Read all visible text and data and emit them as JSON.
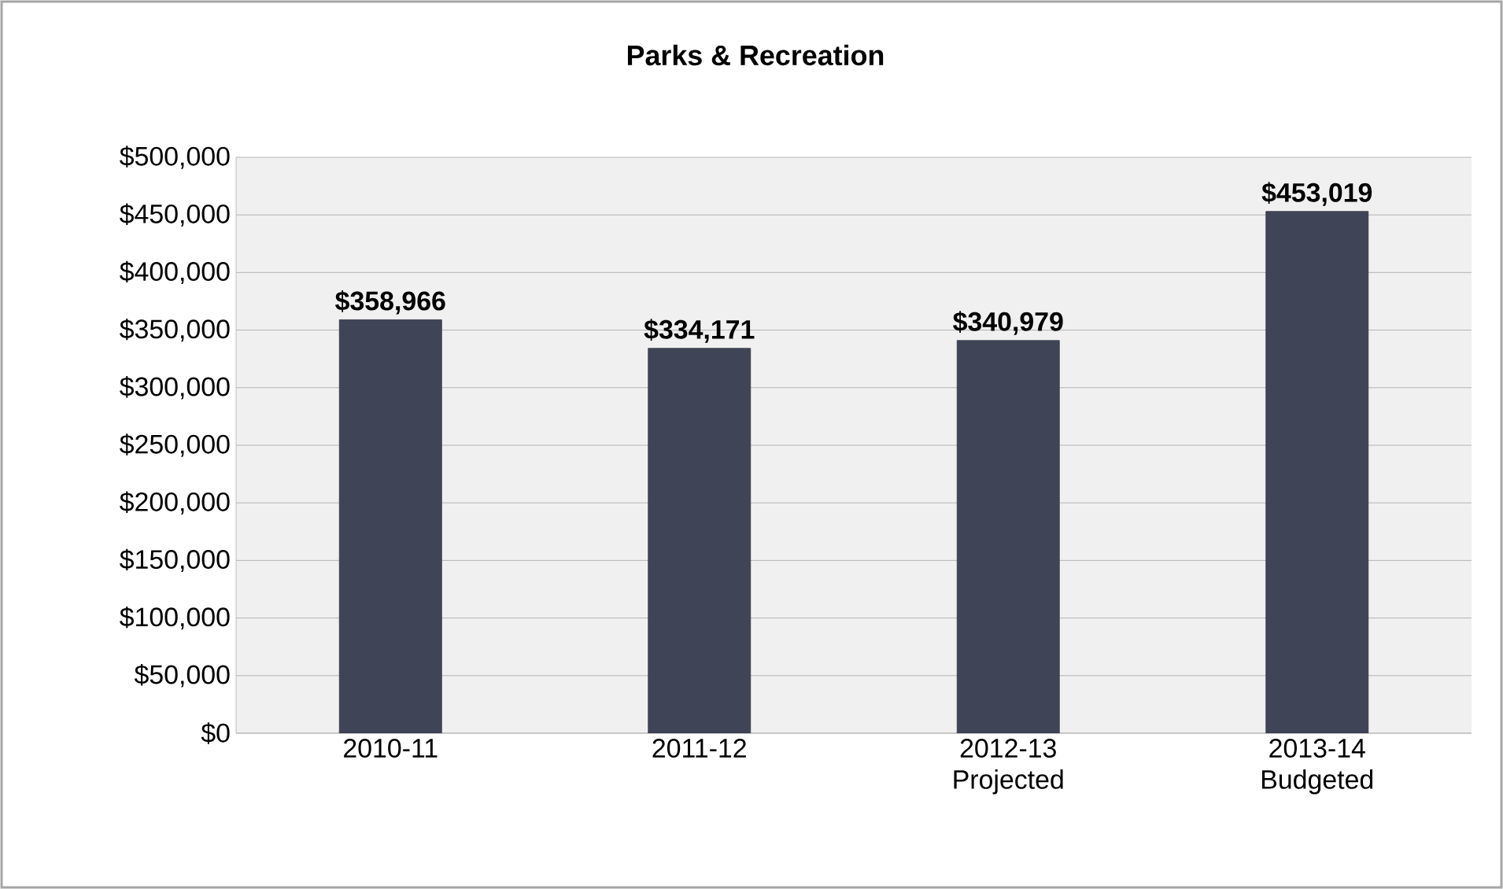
{
  "chart_data": {
    "type": "bar",
    "title": "Parks & Recreation",
    "categories": [
      "2010-11",
      "2011-12",
      "2012-13 Projected",
      "2013-14 Budgeted"
    ],
    "values": [
      358966,
      334171,
      340979,
      453019
    ],
    "value_labels": [
      "$358,966",
      "$334,171",
      "$340,979",
      "$453,019"
    ],
    "color": "#404457",
    "ylim": [
      0,
      500000
    ],
    "yticks": [
      {
        "value": 0,
        "label": "$0"
      },
      {
        "value": 50000,
        "label": "$50,000"
      },
      {
        "value": 100000,
        "label": "$100,000"
      },
      {
        "value": 150000,
        "label": "$150,000"
      },
      {
        "value": 200000,
        "label": "$200,000"
      },
      {
        "value": 250000,
        "label": "$250,000"
      },
      {
        "value": 300000,
        "label": "$300,000"
      },
      {
        "value": 350000,
        "label": "$350,000"
      },
      {
        "value": 400000,
        "label": "$400,000"
      },
      {
        "value": 450000,
        "label": "$450,000"
      },
      {
        "value": 500000,
        "label": "$500,000"
      }
    ],
    "grid": "y"
  }
}
